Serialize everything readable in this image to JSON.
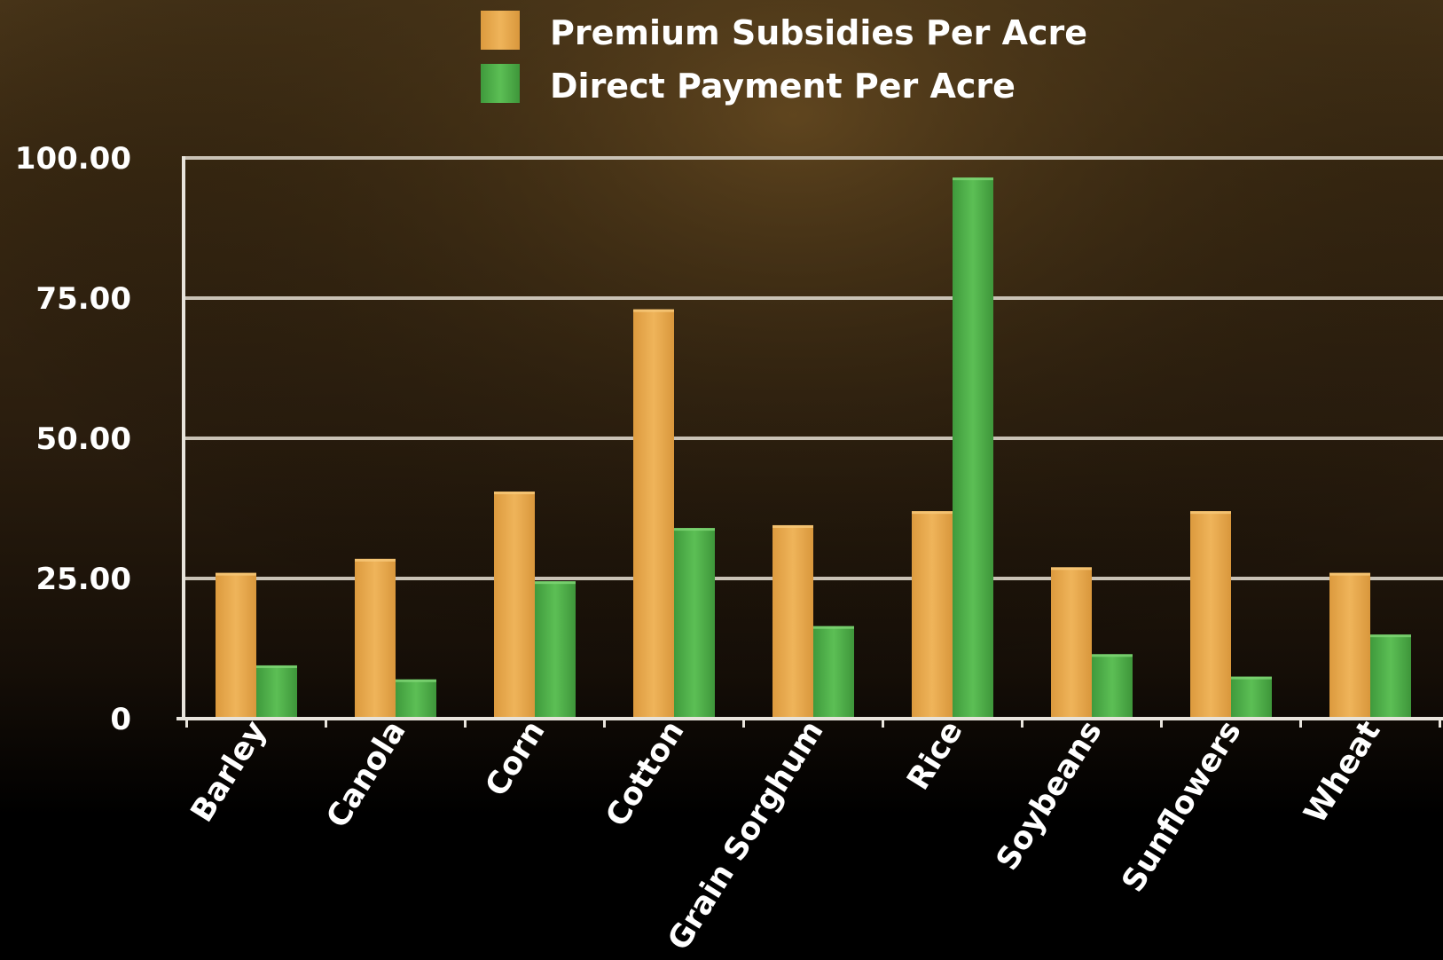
{
  "chart_data": {
    "type": "bar",
    "categories": [
      "Barley",
      "Canola",
      "Corn",
      "Cotton",
      "Grain Sorghum",
      "Rice",
      "Soybeans",
      "Sunflowers",
      "Wheat"
    ],
    "series": [
      {
        "name": "Premium Subsidies Per Acre",
        "color": "#e9a94c",
        "values": [
          26,
          28.5,
          40.5,
          73,
          34.5,
          37,
          27,
          37,
          26
        ]
      },
      {
        "name": "Direct Payment Per Acre",
        "color": "#4fb04a",
        "values": [
          9.5,
          7,
          24.5,
          34,
          16.5,
          96.5,
          11.5,
          7.5,
          15
        ]
      }
    ],
    "y_ticks": [
      "0",
      "25.00",
      "50.00",
      "75.00",
      "100.00"
    ],
    "y_tick_values": [
      0,
      25,
      50,
      75,
      100
    ],
    "ylim": [
      0,
      100
    ],
    "grid": true,
    "legend_position": "top-center",
    "title": "",
    "xlabel": "",
    "ylabel": ""
  },
  "colors": {
    "background_top": "#3a2a16",
    "background_bottom": "#000000",
    "gridline": "#c9c2b6",
    "axis": "#e8e4dc",
    "text": "#ffffff"
  }
}
